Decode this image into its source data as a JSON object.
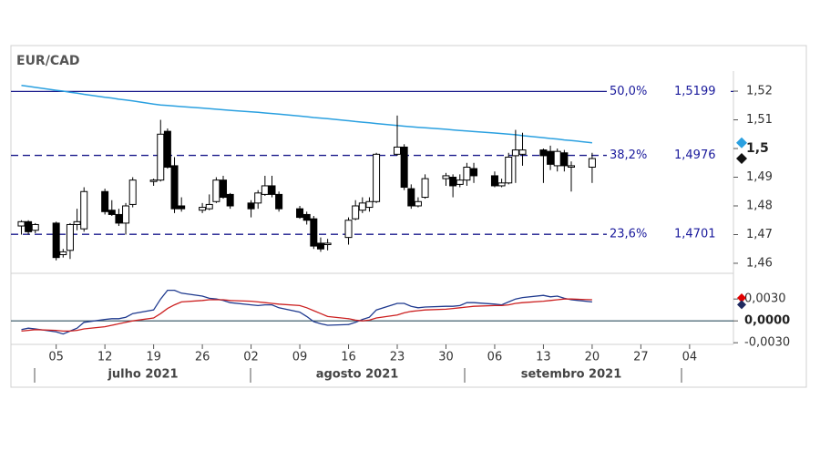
{
  "chart_data": {
    "type": "candlestick",
    "title": "EUR/CAD",
    "x": [
      0,
      1,
      2,
      5,
      6,
      7,
      8,
      9,
      12,
      13,
      14,
      15,
      16,
      19,
      20,
      21,
      22,
      23,
      26,
      27,
      28,
      29,
      30,
      33,
      34,
      35,
      36,
      37,
      40,
      41,
      42,
      43,
      44,
      47,
      48,
      49,
      50,
      51,
      54,
      55,
      56,
      57,
      58,
      61,
      62,
      63,
      64,
      65,
      68,
      69,
      70,
      71,
      72,
      75,
      76,
      77,
      78,
      79,
      82
    ],
    "open": [
      1.473,
      1.4745,
      1.4715,
      1.474,
      1.463,
      1.4645,
      1.4735,
      1.472,
      1.485,
      1.4785,
      1.477,
      1.474,
      1.4805,
      1.4885,
      1.489,
      1.506,
      1.494,
      1.48,
      1.4785,
      1.479,
      1.4815,
      1.489,
      1.484,
      1.481,
      1.481,
      1.484,
      1.487,
      1.484,
      1.479,
      1.477,
      1.4755,
      1.467,
      1.4665,
      1.469,
      1.4755,
      1.4785,
      1.4795,
      1.4815,
      1.498,
      1.5005,
      1.486,
      1.48,
      1.483,
      1.4895,
      1.49,
      1.4875,
      1.489,
      1.493,
      1.4905,
      1.487,
      1.488,
      1.4975,
      1.498,
      1.4995,
      1.499,
      1.494,
      1.4985,
      1.4935,
      1.4935
    ],
    "high": [
      1.475,
      1.475,
      1.474,
      1.4745,
      1.465,
      1.474,
      1.479,
      1.4865,
      1.486,
      1.482,
      1.479,
      1.481,
      1.49,
      1.4895,
      1.51,
      1.507,
      1.497,
      1.483,
      1.481,
      1.484,
      1.49,
      1.4905,
      1.4845,
      1.482,
      1.4855,
      1.4905,
      1.4905,
      1.485,
      1.48,
      1.478,
      1.4765,
      1.469,
      1.4685,
      1.476,
      1.482,
      1.483,
      1.483,
      1.4985,
      1.5115,
      1.5015,
      1.4875,
      1.483,
      1.491,
      1.4915,
      1.491,
      1.491,
      1.495,
      1.495,
      1.492,
      1.4895,
      1.4985,
      1.5065,
      1.5055,
      1.5,
      1.501,
      1.5,
      1.4995,
      1.4955,
      1.4985
    ],
    "low": [
      1.47,
      1.47,
      1.4705,
      1.461,
      1.462,
      1.4615,
      1.4715,
      1.471,
      1.477,
      1.4765,
      1.473,
      1.47,
      1.4795,
      1.487,
      1.4885,
      1.493,
      1.4775,
      1.478,
      1.4775,
      1.4785,
      1.481,
      1.4825,
      1.479,
      1.476,
      1.479,
      1.4835,
      1.483,
      1.478,
      1.4755,
      1.4735,
      1.465,
      1.464,
      1.4645,
      1.4665,
      1.475,
      1.4775,
      1.478,
      1.481,
      1.4975,
      1.4855,
      1.479,
      1.4795,
      1.4825,
      1.487,
      1.483,
      1.4865,
      1.487,
      1.488,
      1.4865,
      1.4865,
      1.4875,
      1.488,
      1.494,
      1.488,
      1.4925,
      1.492,
      1.492,
      1.485,
      1.488
    ],
    "close": [
      1.4745,
      1.471,
      1.4735,
      1.462,
      1.464,
      1.4735,
      1.4745,
      1.485,
      1.478,
      1.477,
      1.474,
      1.48,
      1.489,
      1.489,
      1.505,
      1.4935,
      1.479,
      1.479,
      1.4795,
      1.4805,
      1.489,
      1.483,
      1.48,
      1.479,
      1.4845,
      1.487,
      1.484,
      1.479,
      1.476,
      1.475,
      1.466,
      1.465,
      1.467,
      1.475,
      1.48,
      1.481,
      1.4815,
      1.498,
      1.5005,
      1.4865,
      1.48,
      1.4815,
      1.4895,
      1.4905,
      1.487,
      1.489,
      1.4935,
      1.4905,
      1.487,
      1.488,
      1.497,
      1.4995,
      1.4995,
      1.4975,
      1.4945,
      1.499,
      1.494,
      1.494,
      1.4965
    ],
    "up_color": "#ffffff",
    "down_color": "#000000",
    "series": [
      {
        "color": "#2aa0e0",
        "values": [
          1.522,
          1.5217,
          1.5213,
          1.5203,
          1.52,
          1.5196,
          1.5193,
          1.5189,
          1.5179,
          1.5176,
          1.5172,
          1.5169,
          1.5166,
          1.5155,
          1.5152,
          1.515,
          1.5148,
          1.5146,
          1.5141,
          1.5139,
          1.5137,
          1.5135,
          1.5133,
          1.5128,
          1.5126,
          1.5124,
          1.5122,
          1.512,
          1.5113,
          1.5111,
          1.5108,
          1.5106,
          1.5104,
          1.5097,
          1.5094,
          1.5092,
          1.509,
          1.5087,
          1.508,
          1.5078,
          1.5076,
          1.5074,
          1.5072,
          1.5067,
          1.5065,
          1.5063,
          1.5061,
          1.5059,
          1.5054,
          1.5052,
          1.505,
          1.5048,
          1.5045,
          1.5038,
          1.5035,
          1.5033,
          1.503,
          1.5028,
          1.502
        ]
      }
    ],
    "levels": {
      "labels": [
        "50,0%",
        "38,2%",
        "23,6%"
      ],
      "values": [
        1.5199,
        1.4976,
        1.4701
      ],
      "value_labels": [
        "1,5199",
        "1,4976",
        "1,4701"
      ],
      "styles": [
        "solid",
        "dashed",
        "dashed"
      ],
      "color": "#1a1a8c"
    },
    "xlim": [
      -1.5,
      102.3
    ],
    "xticks": [
      {
        "value": 5,
        "label": "05"
      },
      12,
      19,
      26,
      {
        "value": 33,
        "label": "02"
      },
      {
        "value": 40,
        "label": "09"
      },
      {
        "value": 47,
        "label": "16"
      },
      {
        "value": 54,
        "label": "23"
      },
      {
        "value": 61,
        "label": "30"
      },
      {
        "value": 68,
        "label": "06"
      },
      {
        "value": 75,
        "label": "13"
      },
      {
        "value": 82,
        "label": "20"
      },
      {
        "value": 89,
        "label": "27"
      },
      {
        "value": 96,
        "label": "04"
      }
    ],
    "x_groups": [
      "julho 2021",
      "agosto 2021",
      "setembro 2021"
    ],
    "ylim": [
      1.4565,
      1.527
    ],
    "yticks": [
      {
        "value": 1.52,
        "label": "1,52"
      },
      {
        "value": 1.51,
        "label": "1,51"
      },
      {
        "value": 1.5,
        "label": "1,5",
        "bold": true
      },
      {
        "value": 1.49,
        "label": "1,49"
      },
      {
        "value": 1.48,
        "label": "1,48"
      },
      {
        "value": 1.47,
        "label": "1,47"
      },
      {
        "value": 1.46,
        "label": "1,46"
      }
    ],
    "indicator": {
      "ylim": [
        -0.0031,
        0.0059
      ],
      "yticks": [
        {
          "value": 0.003,
          "label": "0,0030"
        },
        {
          "value": 0,
          "label": "0,0000",
          "bold": true
        },
        {
          "value": -0.003,
          "label": "-0,0030"
        }
      ],
      "zero_color": "#2f4f5f",
      "series": [
        {
          "color": "#1f3a8f",
          "values": [
            -0.0012,
            -0.001,
            -0.0011,
            -0.0015,
            -0.0018,
            -0.0014,
            -0.001,
            -0.0002,
            0.0002,
            0.0003,
            0.0003,
            0.0005,
            0.001,
            0.0015,
            0.003,
            0.0042,
            0.0042,
            0.0038,
            0.0034,
            0.0031,
            0.003,
            0.0028,
            0.0025,
            0.0022,
            0.0021,
            0.0022,
            0.0022,
            0.0018,
            0.0012,
            0.0006,
            -0.0001,
            -0.0004,
            -0.0006,
            -0.0005,
            -0.0002,
            0.0002,
            0.0005,
            0.0015,
            0.0024,
            0.0024,
            0.002,
            0.0018,
            0.0019,
            0.002,
            0.002,
            0.0021,
            0.0025,
            0.0025,
            0.0023,
            0.0022,
            0.0026,
            0.003,
            0.0032,
            0.0035,
            0.0033,
            0.0034,
            0.0031,
            0.0029,
            0.0026
          ]
        },
        {
          "color": "#cc2020",
          "values": [
            -0.0014,
            -0.0013,
            -0.0012,
            -0.0013,
            -0.0014,
            -0.0014,
            -0.0013,
            -0.0011,
            -0.0008,
            -0.0006,
            -0.0004,
            -0.0002,
            0,
            0.0004,
            0.001,
            0.0017,
            0.0022,
            0.0026,
            0.0028,
            0.0029,
            0.0029,
            0.0029,
            0.0028,
            0.0027,
            0.0026,
            0.0025,
            0.0024,
            0.0023,
            0.0021,
            0.0018,
            0.0014,
            0.001,
            0.0006,
            0.0003,
            0.0001,
            0,
            0.0001,
            0.0004,
            0.0008,
            0.0011,
            0.0013,
            0.0014,
            0.0015,
            0.0016,
            0.0017,
            0.0018,
            0.0019,
            0.002,
            0.0021,
            0.0021,
            0.0022,
            0.0024,
            0.0025,
            0.0027,
            0.0028,
            0.0029,
            0.003,
            0.003,
            0.0029
          ]
        }
      ]
    }
  }
}
